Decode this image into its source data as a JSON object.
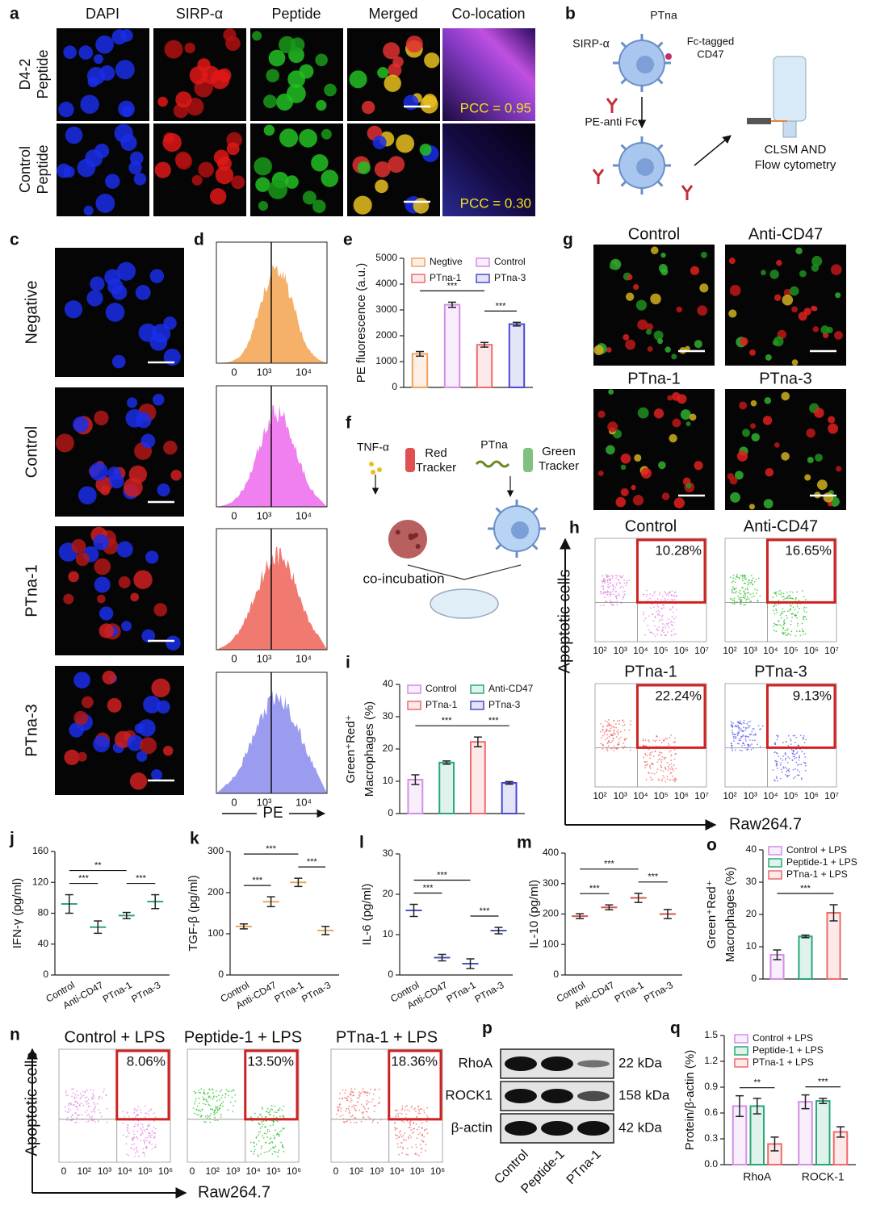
{
  "panel_labels": [
    "a",
    "b",
    "c",
    "d",
    "e",
    "f",
    "g",
    "h",
    "i",
    "j",
    "k",
    "l",
    "m",
    "n",
    "o",
    "p",
    "q"
  ],
  "a": {
    "columns": [
      "DAPI",
      "SIRP-α",
      "Peptide",
      "Merged",
      "Co-location"
    ],
    "rows": [
      [
        "D4-2",
        "Peptide"
      ],
      [
        "Control",
        "Peptide"
      ]
    ],
    "pcc": [
      "PCC = 0.95",
      "PCC = 0.30"
    ]
  },
  "b": {
    "ptna": "PTna",
    "sirp": "SIRP-α",
    "fc_cd47": [
      "Fc-tagged",
      "CD47"
    ],
    "pe_anti_fc": "PE-anti Fc",
    "readout": [
      "CLSM AND",
      "Flow cytometry"
    ]
  },
  "c": {
    "rows": [
      "Negative",
      "Control",
      "PTna-1",
      "PTna-3"
    ]
  },
  "d": {
    "xtick_labels": [
      "0",
      "10³",
      "10⁴"
    ],
    "xlabel": "PE"
  },
  "f": {
    "tnf": "TNF-α",
    "red_tracker": [
      "Red",
      "Tracker"
    ],
    "ptna": "PTna",
    "green_tracker": [
      "Green",
      "Tracker"
    ],
    "coincubation": "co-incubation"
  },
  "g": {
    "titles": [
      "Control",
      "Anti-CD47",
      "PTna-1",
      "PTna-3"
    ]
  },
  "h": {
    "titles": [
      "Control",
      "Anti-CD47",
      "PTna-1",
      "PTna-3"
    ],
    "percentages": [
      "10.28%",
      "16.65%",
      "22.24%",
      "9.13%"
    ],
    "ylabel": "Apoptotic cells",
    "xlabel": "Raw264.7",
    "xtick_labels": [
      "10²",
      "10³",
      "10⁴",
      "10⁵",
      "10⁶",
      "10⁷"
    ]
  },
  "n": {
    "titles": [
      "Control + LPS",
      "Peptide-1 + LPS",
      "PTna-1 + LPS"
    ],
    "percentages": [
      "8.06%",
      "13.50%",
      "18.36%"
    ],
    "ylabel": "Apoptotic cells",
    "xlabel": "Raw264.7",
    "xtick_labels": [
      "0",
      "10²",
      "10³",
      "10⁴",
      "10⁵",
      "10⁶"
    ]
  },
  "p": {
    "proteins": [
      "RhoA",
      "ROCK1",
      "β-actin"
    ],
    "sizes": [
      "22 kDa",
      "158 kDa",
      "42 kDa"
    ],
    "lanes": [
      "Control",
      "Peptide-1",
      "PTna-1"
    ]
  },
  "chart_data": [
    {
      "type": "bar",
      "ylabel": "PE fluorescence (a.u.)",
      "ylim": [
        0,
        5000
      ],
      "yticks": [
        0,
        1000,
        2000,
        3000,
        4000,
        5000
      ],
      "series": [
        {
          "name": "Negtive",
          "color": "#f0a35e",
          "values": [
            1300
          ],
          "errors": [
            90
          ]
        },
        {
          "name": "Control",
          "color": "#d38ee8",
          "values": [
            3200
          ],
          "errors": [
            100
          ]
        },
        {
          "name": "PTna-1",
          "color": "#ef6b6b",
          "values": [
            1650
          ],
          "errors": [
            90
          ]
        },
        {
          "name": "PTna-3",
          "color": "#4a4ad0",
          "values": [
            2450
          ],
          "errors": [
            70
          ]
        }
      ],
      "annotations": [
        "***",
        "***"
      ]
    },
    {
      "type": "bar",
      "ylabel": [
        "Green⁺Red⁺",
        "Macrophages (%)"
      ],
      "ylim": [
        0,
        40
      ],
      "yticks": [
        0,
        10,
        20,
        30,
        40
      ],
      "series": [
        {
          "name": "Control",
          "color": "#d38ee8",
          "values": [
            10.5
          ],
          "errors": [
            1.5
          ]
        },
        {
          "name": "Anti-CD47",
          "color": "#2aa876",
          "values": [
            15.8
          ],
          "errors": [
            0.5
          ]
        },
        {
          "name": "PTna-1",
          "color": "#ef6b6b",
          "values": [
            22.2
          ],
          "errors": [
            1.5
          ]
        },
        {
          "name": "PTna-3",
          "color": "#4a4ad0",
          "values": [
            9.5
          ],
          "errors": [
            0.4
          ]
        }
      ],
      "annotations": [
        "***",
        "***"
      ]
    },
    {
      "type": "dot",
      "ylabel": "IFN-γ (pg/ml)",
      "categories": [
        "Control",
        "Anti-CD47",
        "PTna-1",
        "PTna-3"
      ],
      "values": [
        92,
        62,
        77,
        95
      ],
      "errors": [
        12,
        8,
        4,
        9
      ],
      "color": "#2aa876",
      "ylim": [
        0,
        160
      ],
      "yticks": [
        0,
        40,
        80,
        120,
        160
      ],
      "annotations": [
        "***",
        "**",
        "***"
      ]
    },
    {
      "type": "dot",
      "ylabel": "TGF-β (pg/ml)",
      "categories": [
        "Control",
        "Anti-CD47",
        "PTna-1",
        "PTna-3"
      ],
      "values": [
        118,
        178,
        225,
        108
      ],
      "errors": [
        6,
        12,
        10,
        10
      ],
      "color": "#e8a85c",
      "ylim": [
        0,
        300
      ],
      "yticks": [
        0,
        100,
        200,
        300
      ],
      "annotations": [
        "***",
        "***",
        "***"
      ]
    },
    {
      "type": "dot",
      "ylabel": "IL-6 (pg/ml)",
      "categories": [
        "Control",
        "Anti-CD47",
        "PTna-1",
        "PTna-3"
      ],
      "values": [
        16,
        4.3,
        2.8,
        11
      ],
      "errors": [
        1.5,
        0.8,
        1.2,
        0.8
      ],
      "color": "#4a55b5",
      "ylim": [
        0,
        30
      ],
      "yticks": [
        0,
        10,
        20,
        30
      ],
      "annotations": [
        "***",
        "***",
        "***"
      ]
    },
    {
      "type": "dot",
      "ylabel": "IL-10 (pg/ml)",
      "categories": [
        "Control",
        "Anti-CD47",
        "PTna-1",
        "PTna-3"
      ],
      "values": [
        193,
        222,
        253,
        200
      ],
      "errors": [
        8,
        8,
        15,
        15
      ],
      "color": "#d9534f",
      "ylim": [
        0,
        400
      ],
      "yticks": [
        0,
        100,
        200,
        300,
        400
      ],
      "annotations": [
        "***",
        "***",
        "***"
      ]
    },
    {
      "type": "bar",
      "ylabel": [
        "Green⁺Red⁺",
        "Macrophages (%)"
      ],
      "ylim": [
        0,
        40
      ],
      "yticks": [
        0,
        10,
        20,
        30,
        40
      ],
      "series": [
        {
          "name": "Control + LPS",
          "color": "#d38ee8",
          "values": [
            7.5
          ],
          "errors": [
            1.5
          ]
        },
        {
          "name": "Peptide-1 + LPS",
          "color": "#2aa876",
          "values": [
            13.2
          ],
          "errors": [
            0.4
          ]
        },
        {
          "name": "PTna-1 + LPS",
          "color": "#ef6b6b",
          "values": [
            20.5
          ],
          "errors": [
            2.5
          ]
        }
      ],
      "annotations": [
        "***"
      ]
    },
    {
      "type": "grouped_bar",
      "ylabel": "Protein/β-actin (%)",
      "categories": [
        "RhoA",
        "ROCK-1"
      ],
      "ylim": [
        0,
        1.5
      ],
      "yticks": [
        {
          "value": 0,
          "label": "0.0"
        },
        0.3,
        0.6,
        0.9,
        1.2,
        1.5
      ],
      "series": [
        {
          "name": "Control + LPS",
          "color": "#d38ee8",
          "values": [
            0.68,
            0.73
          ],
          "errors": [
            0.12,
            0.08
          ]
        },
        {
          "name": "Peptide-1 + LPS",
          "color": "#2aa876",
          "values": [
            0.68,
            0.74
          ],
          "errors": [
            0.09,
            0.03
          ]
        },
        {
          "name": "PTna-1 + LPS",
          "color": "#ef6b6b",
          "values": [
            0.24,
            0.38
          ],
          "errors": [
            0.08,
            0.06
          ]
        }
      ],
      "annotations": [
        "**",
        "***"
      ]
    }
  ]
}
